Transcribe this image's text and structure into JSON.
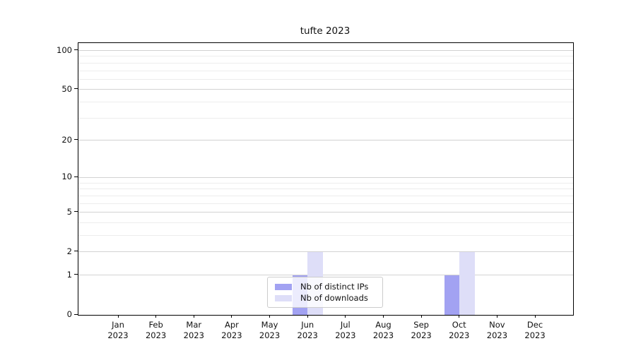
{
  "window": {
    "background": "#ffffff"
  },
  "chart_data": {
    "type": "bar",
    "title": "tufte 2023",
    "categories": [
      {
        "month": "Jan",
        "year": "2023"
      },
      {
        "month": "Feb",
        "year": "2023"
      },
      {
        "month": "Mar",
        "year": "2023"
      },
      {
        "month": "Apr",
        "year": "2023"
      },
      {
        "month": "May",
        "year": "2023"
      },
      {
        "month": "Jun",
        "year": "2023"
      },
      {
        "month": "Jul",
        "year": "2023"
      },
      {
        "month": "Aug",
        "year": "2023"
      },
      {
        "month": "Sep",
        "year": "2023"
      },
      {
        "month": "Oct",
        "year": "2023"
      },
      {
        "month": "Nov",
        "year": "2023"
      },
      {
        "month": "Dec",
        "year": "2023"
      }
    ],
    "series": [
      {
        "name": "Nb of distinct IPs",
        "color": "#a2a2f2",
        "values": [
          0,
          0,
          0,
          0,
          0,
          1,
          0,
          0,
          0,
          1,
          0,
          0
        ]
      },
      {
        "name": "Nb of downloads",
        "color": "#dedef8",
        "values": [
          0,
          0,
          0,
          0,
          0,
          2,
          0,
          0,
          0,
          2,
          0,
          0
        ]
      }
    ],
    "xlabel": "",
    "ylabel": "",
    "yticks": [
      0,
      1,
      2,
      5,
      10,
      20,
      50,
      100
    ],
    "minor_gridlines": [
      3,
      4,
      6,
      7,
      8,
      9,
      30,
      40,
      60,
      70,
      80,
      90
    ],
    "scale": "log1p",
    "ylim": [
      0,
      114
    ],
    "grid": "horizontal",
    "legend_position": "lower center",
    "spine_color": "#000000",
    "major_grid_color": "#d2d2d2",
    "minor_grid_color": "#ededed"
  }
}
